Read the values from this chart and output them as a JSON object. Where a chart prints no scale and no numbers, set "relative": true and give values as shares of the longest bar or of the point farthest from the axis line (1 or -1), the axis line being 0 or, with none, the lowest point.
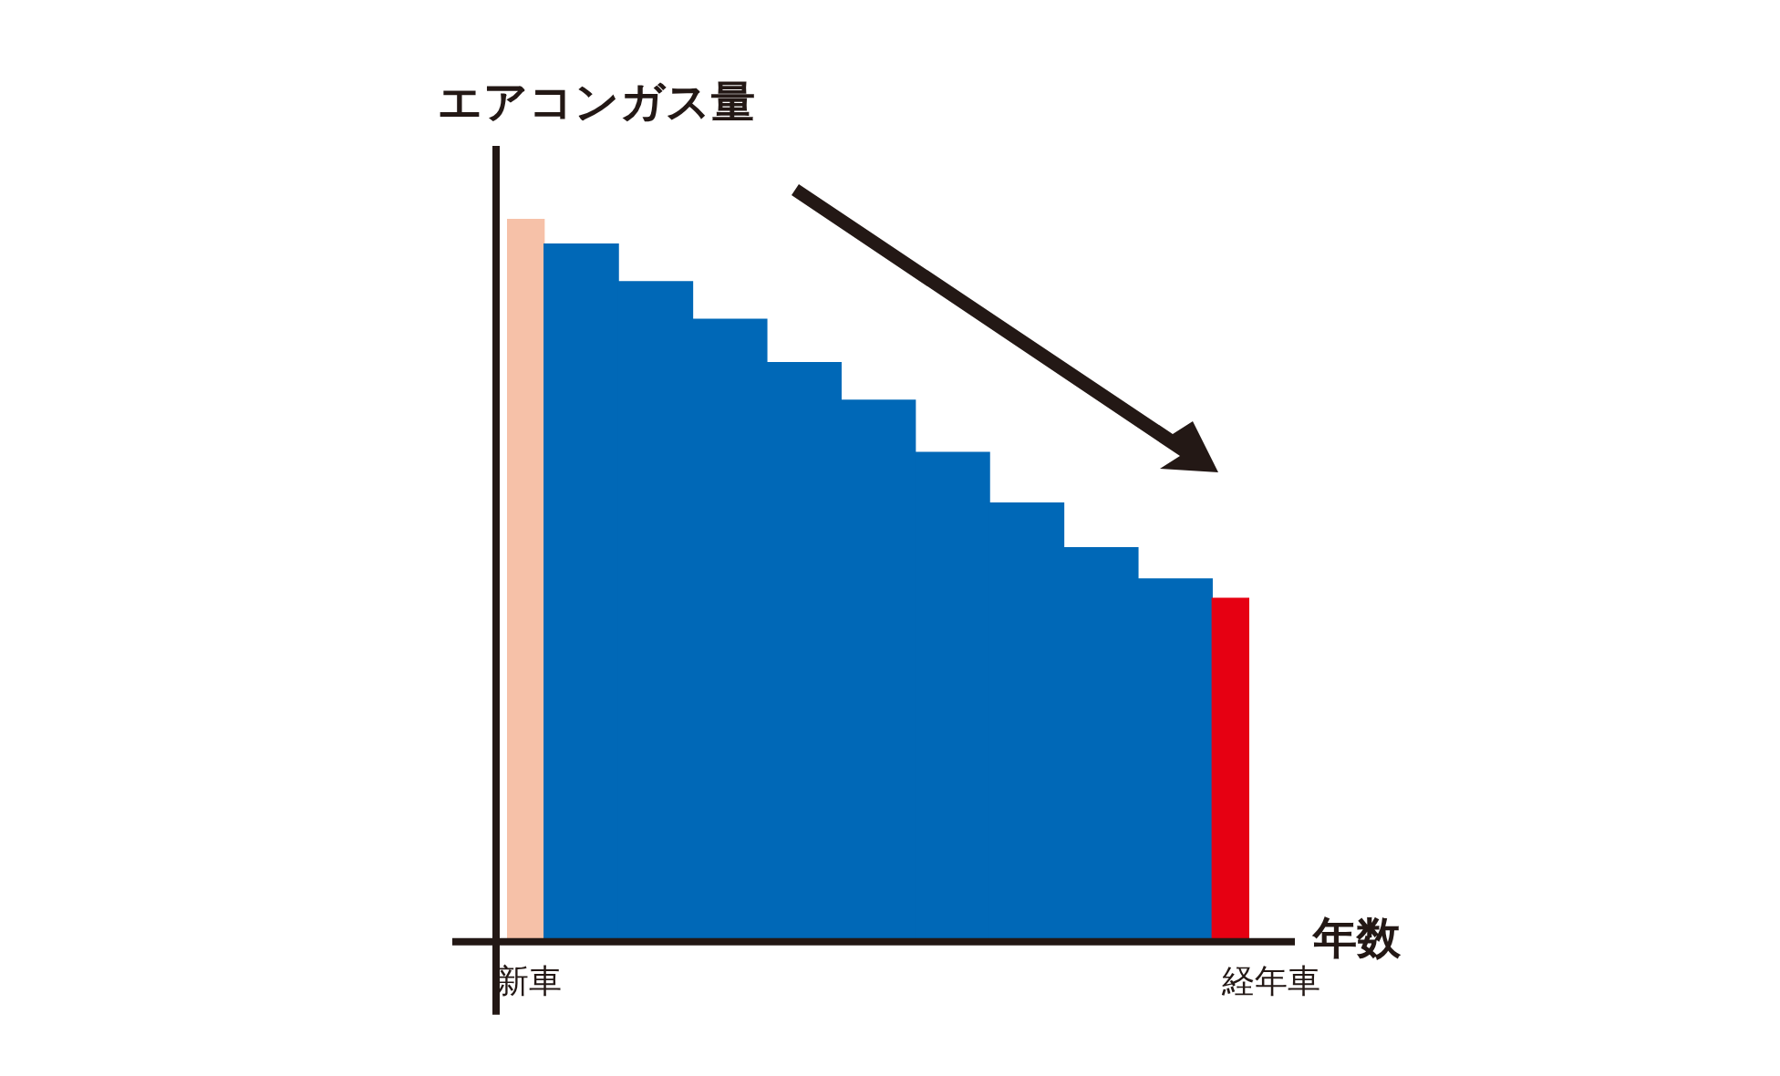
{
  "chart_data": {
    "type": "bar",
    "relative": true,
    "xlabel": "年数",
    "ylabel": "エアコンガス量",
    "categories": [
      "新車",
      null,
      null,
      null,
      null,
      null,
      null,
      null,
      null,
      null,
      "経年車"
    ],
    "values": [
      1,
      0.965,
      0.913,
      0.861,
      0.801,
      0.749,
      0.677,
      0.607,
      0.545,
      0.502,
      0.475
    ],
    "colors": [
      "#f6c1a8",
      "#0068b7",
      "#0068b7",
      "#0068b7",
      "#0068b7",
      "#0068b7",
      "#0068b7",
      "#0068b7",
      "#0068b7",
      "#0068b7",
      "#e60012"
    ],
    "grid": false,
    "legend": false
  }
}
